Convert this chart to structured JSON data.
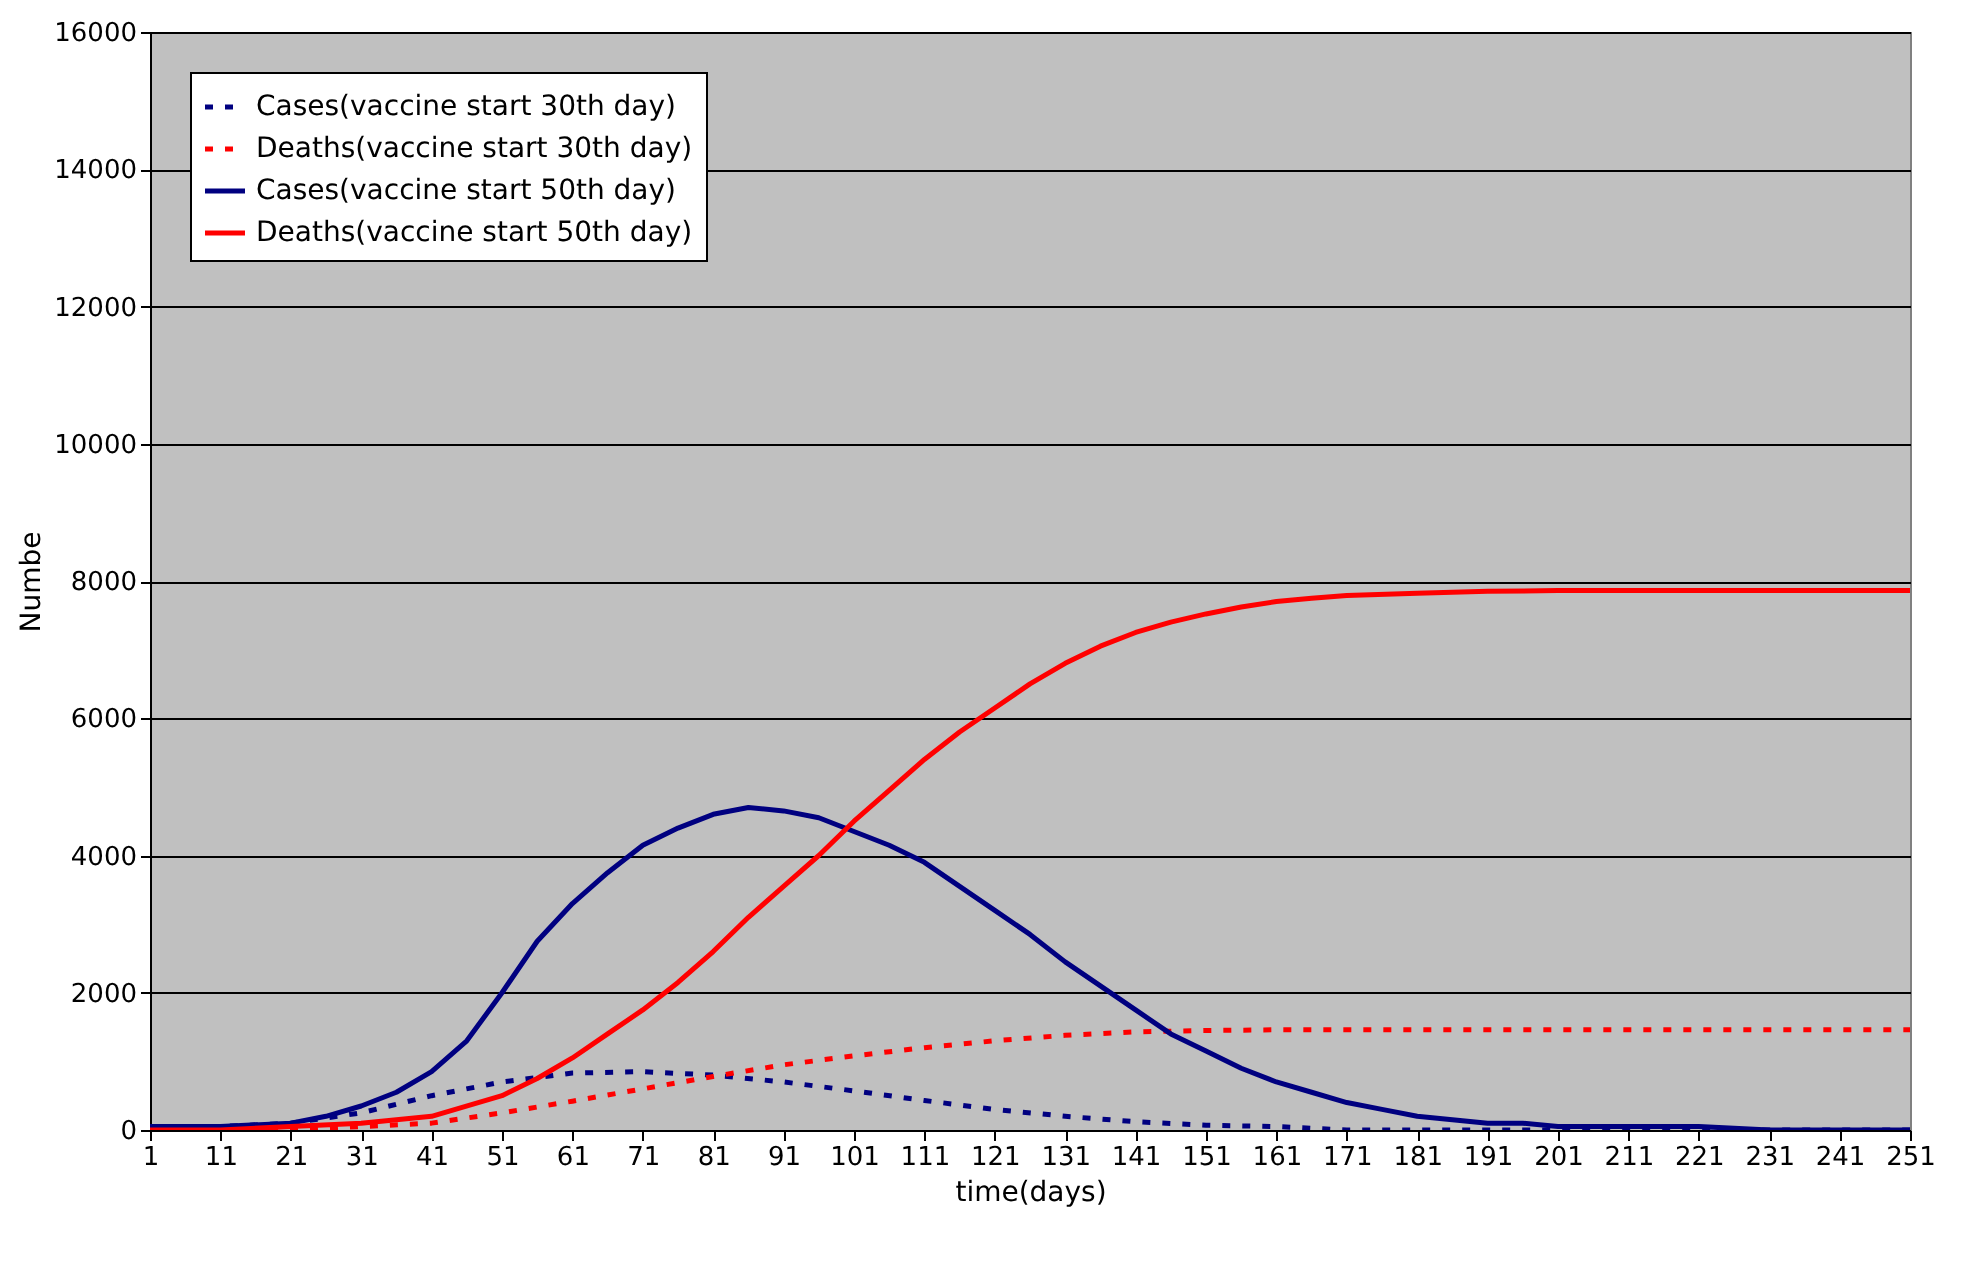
{
  "chart_data": {
    "type": "line",
    "xlabel": "time(days)",
    "ylabel": "Numbe",
    "xlim": [
      1,
      251
    ],
    "xticks": [
      1,
      11,
      21,
      31,
      41,
      51,
      61,
      71,
      81,
      91,
      101,
      111,
      121,
      131,
      141,
      151,
      161,
      171,
      181,
      191,
      201,
      211,
      221,
      231,
      241,
      251
    ],
    "ylim": [
      0,
      16000
    ],
    "yticks": [
      0,
      2000,
      4000,
      6000,
      8000,
      10000,
      12000,
      14000,
      16000
    ],
    "grid": "y",
    "legend": "top left",
    "series": [
      {
        "name": "Cases(vaccine start 30th day)",
        "color": "#000080",
        "line_style": "dotted",
        "x": [
          1,
          11,
          21,
          31,
          41,
          51,
          61,
          71,
          81,
          91,
          101,
          111,
          121,
          131,
          141,
          151,
          161,
          171,
          181,
          201,
          221,
          251
        ],
        "values": [
          0,
          50,
          100,
          250,
          500,
          700,
          830,
          850,
          800,
          700,
          570,
          430,
          300,
          200,
          120,
          70,
          50,
          0,
          0,
          0,
          0,
          0
        ]
      },
      {
        "name": "Deaths(vaccine start 30th day)",
        "color": "#ff0000",
        "line_style": "dotted",
        "x": [
          1,
          21,
          31,
          41,
          51,
          61,
          71,
          81,
          91,
          101,
          111,
          121,
          131,
          141,
          151,
          161,
          251
        ],
        "values": [
          0,
          0,
          50,
          100,
          250,
          420,
          600,
          780,
          950,
          1080,
          1200,
          1300,
          1380,
          1430,
          1450,
          1460,
          1460
        ]
      },
      {
        "name": "Cases(vaccine start 50th day)",
        "color": "#000080",
        "line_style": "solid",
        "x": [
          1,
          11,
          21,
          26,
          31,
          36,
          41,
          46,
          51,
          56,
          61,
          66,
          71,
          76,
          81,
          86,
          91,
          96,
          101,
          106,
          111,
          116,
          121,
          126,
          131,
          136,
          141,
          146,
          151,
          156,
          161,
          166,
          171,
          176,
          181,
          186,
          191,
          196,
          201,
          211,
          221,
          231,
          241,
          251
        ],
        "values": [
          50,
          50,
          100,
          200,
          350,
          550,
          850,
          1300,
          2000,
          2750,
          3300,
          3750,
          4150,
          4400,
          4600,
          4700,
          4650,
          4550,
          4350,
          4150,
          3900,
          3550,
          3200,
          2850,
          2450,
          2100,
          1750,
          1400,
          1150,
          900,
          700,
          550,
          400,
          300,
          200,
          150,
          100,
          100,
          50,
          50,
          50,
          0,
          0,
          0
        ]
      },
      {
        "name": "Deaths(vaccine start 50th day)",
        "color": "#ff0000",
        "line_style": "solid",
        "x": [
          1,
          11,
          21,
          31,
          41,
          51,
          56,
          61,
          66,
          71,
          76,
          81,
          86,
          91,
          96,
          101,
          106,
          111,
          116,
          121,
          126,
          131,
          136,
          141,
          146,
          151,
          156,
          161,
          166,
          171,
          181,
          191,
          201,
          251
        ],
        "values": [
          0,
          0,
          50,
          100,
          200,
          500,
          750,
          1050,
          1400,
          1750,
          2150,
          2600,
          3100,
          3550,
          4000,
          4500,
          4950,
          5400,
          5800,
          6150,
          6500,
          6800,
          7050,
          7250,
          7400,
          7520,
          7620,
          7700,
          7750,
          7790,
          7820,
          7850,
          7860,
          7860
        ]
      }
    ]
  }
}
